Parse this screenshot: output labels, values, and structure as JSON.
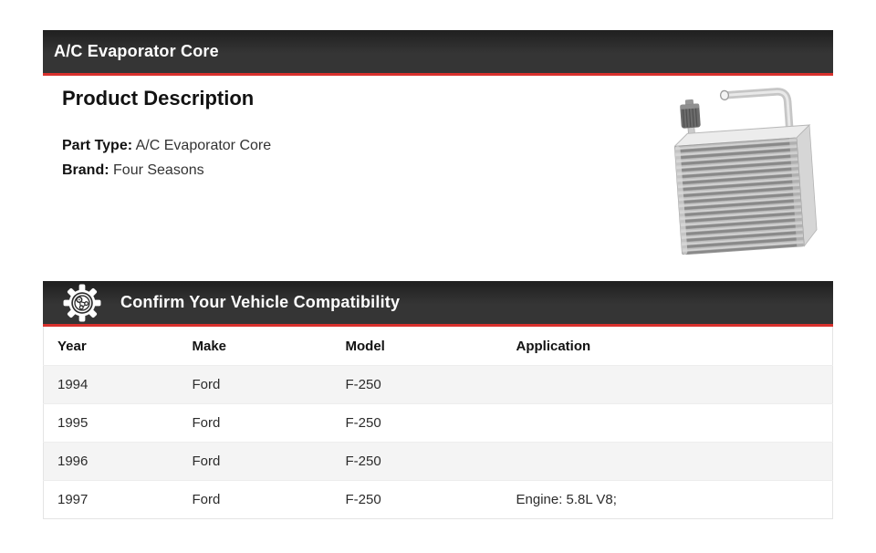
{
  "page": {
    "colors": {
      "accent-red": "#d8312d",
      "header-bg": "#2d2d2d",
      "header-text": "#ffffff",
      "heading-text": "#121212",
      "body-text": "#333333",
      "alt-row-bg": "#f4f4f4",
      "table-border": "#e4e4e4"
    }
  },
  "product_section": {
    "bar_title": "A/C Evaporator Core",
    "heading": "Product Description",
    "fields": [
      {
        "label": "Part Type:",
        "value": "A/C Evaporator Core"
      },
      {
        "label": "Brand:",
        "value": "Four Seasons"
      }
    ],
    "image": {
      "name": "evaporator-core-photo"
    }
  },
  "compatibility_section": {
    "bar_title": "Confirm Your Vehicle Compatibility",
    "icon": "gear-icon",
    "table": {
      "columns": [
        "Year",
        "Make",
        "Model",
        "Application"
      ],
      "rows": [
        [
          "1994",
          "Ford",
          "F-250",
          ""
        ],
        [
          "1995",
          "Ford",
          "F-250",
          ""
        ],
        [
          "1996",
          "Ford",
          "F-250",
          ""
        ],
        [
          "1997",
          "Ford",
          "F-250",
          "Engine: 5.8L V8;"
        ]
      ]
    }
  }
}
